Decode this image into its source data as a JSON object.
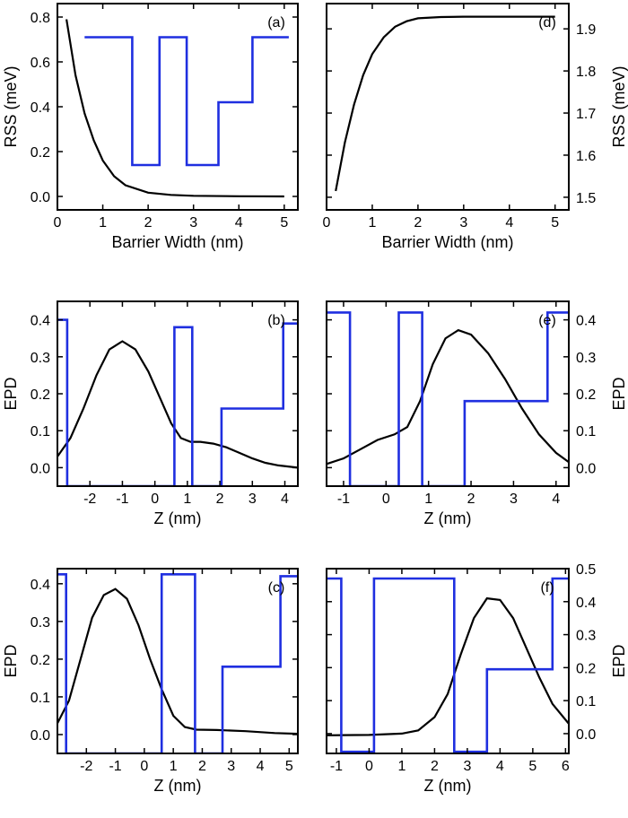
{
  "chart_data": [
    {
      "id": "a",
      "panel_label": "(a)",
      "type": "line",
      "xlabel": "Barrier Width (nm)",
      "ylabel": "RSS (meV)",
      "ylabel_side": "left",
      "xlim": [
        0,
        5.3
      ],
      "ylim": [
        -0.06,
        0.86
      ],
      "xticks": [
        0,
        1,
        2,
        3,
        4,
        5
      ],
      "yticks": [
        0.0,
        0.2,
        0.4,
        0.6,
        0.8
      ],
      "tick_decimals": 1,
      "series": [
        {
          "role": "curve",
          "color": "#000000",
          "x": [
            0.2,
            0.4,
            0.6,
            0.8,
            1.0,
            1.25,
            1.5,
            2.0,
            2.5,
            3.0,
            4.0,
            5.0
          ],
          "y": [
            0.79,
            0.54,
            0.37,
            0.25,
            0.16,
            0.09,
            0.05,
            0.017,
            0.007,
            0.003,
            0.001,
            0.0
          ]
        },
        {
          "role": "potential-inset",
          "color": "#1f2fe0",
          "x": [
            0.6,
            1.65,
            1.65,
            2.25,
            2.25,
            2.85,
            2.85,
            3.55,
            3.55,
            4.3,
            4.3,
            5.1
          ],
          "y": [
            0.71,
            0.71,
            0.14,
            0.14,
            0.71,
            0.71,
            0.14,
            0.14,
            0.42,
            0.42,
            0.71,
            0.71
          ]
        }
      ]
    },
    {
      "id": "d",
      "panel_label": "(d)",
      "type": "line",
      "xlabel": "Barrier Width (nm)",
      "ylabel": "RSS (meV)",
      "ylabel_side": "right",
      "xlim": [
        0,
        5.3
      ],
      "ylim": [
        1.47,
        1.96
      ],
      "xticks": [
        0,
        1,
        2,
        3,
        4,
        5
      ],
      "yticks": [
        1.5,
        1.6,
        1.7,
        1.8,
        1.9
      ],
      "tick_decimals": 1,
      "series": [
        {
          "role": "curve",
          "color": "#000000",
          "x": [
            0.2,
            0.4,
            0.6,
            0.8,
            1.0,
            1.25,
            1.5,
            1.75,
            2.0,
            2.5,
            3.0,
            4.0,
            5.0
          ],
          "y": [
            1.515,
            1.63,
            1.72,
            1.79,
            1.84,
            1.88,
            1.905,
            1.918,
            1.925,
            1.928,
            1.929,
            1.929,
            1.929
          ]
        }
      ]
    },
    {
      "id": "b",
      "panel_label": "(b)",
      "type": "line",
      "xlabel": "Z (nm)",
      "ylabel": "EPD",
      "ylabel_side": "left",
      "xlim": [
        -3.0,
        4.4
      ],
      "ylim": [
        -0.05,
        0.45
      ],
      "xticks": [
        -2,
        -1,
        0,
        1,
        2,
        3,
        4
      ],
      "yticks": [
        0.0,
        0.1,
        0.2,
        0.3,
        0.4
      ],
      "tick_decimals": 1,
      "series": [
        {
          "role": "curve",
          "color": "#000000",
          "x": [
            -3.0,
            -2.6,
            -2.2,
            -1.8,
            -1.4,
            -1.0,
            -0.6,
            -0.2,
            0.2,
            0.5,
            0.8,
            1.1,
            1.4,
            1.8,
            2.2,
            2.6,
            3.0,
            3.4,
            3.8,
            4.4
          ],
          "y": [
            0.03,
            0.08,
            0.16,
            0.25,
            0.32,
            0.342,
            0.32,
            0.26,
            0.18,
            0.12,
            0.08,
            0.07,
            0.07,
            0.065,
            0.055,
            0.04,
            0.025,
            0.013,
            0.006,
            0.0
          ]
        },
        {
          "role": "potential",
          "color": "#1f2fe0",
          "x": [
            -3.0,
            -2.7,
            -2.7,
            0.6,
            0.6,
            1.15,
            1.15,
            2.05,
            2.05,
            3.95,
            3.95,
            4.4
          ],
          "y": [
            0.4,
            0.4,
            -0.05,
            -0.05,
            0.38,
            0.38,
            -0.05,
            -0.05,
            0.16,
            0.16,
            0.39,
            0.39
          ]
        }
      ]
    },
    {
      "id": "e",
      "panel_label": "(e)",
      "type": "line",
      "xlabel": "Z (nm)",
      "ylabel": "EPD",
      "ylabel_side": "right",
      "xlim": [
        -1.4,
        4.3
      ],
      "ylim": [
        -0.05,
        0.45
      ],
      "xticks": [
        -1,
        0,
        1,
        2,
        3,
        4
      ],
      "yticks": [
        0.0,
        0.1,
        0.2,
        0.3,
        0.4
      ],
      "tick_decimals": 1,
      "series": [
        {
          "role": "curve",
          "color": "#000000",
          "x": [
            -1.4,
            -1.0,
            -0.6,
            -0.2,
            0.2,
            0.5,
            0.8,
            1.1,
            1.4,
            1.7,
            2.0,
            2.4,
            2.8,
            3.2,
            3.6,
            4.0,
            4.3
          ],
          "y": [
            0.01,
            0.025,
            0.05,
            0.075,
            0.09,
            0.11,
            0.18,
            0.28,
            0.35,
            0.372,
            0.36,
            0.31,
            0.24,
            0.16,
            0.09,
            0.04,
            0.015
          ]
        },
        {
          "role": "potential",
          "color": "#1f2fe0",
          "x": [
            -1.4,
            -0.85,
            -0.85,
            0.3,
            0.3,
            0.85,
            0.85,
            1.85,
            1.85,
            3.8,
            3.8,
            4.3
          ],
          "y": [
            0.42,
            0.42,
            -0.05,
            -0.05,
            0.42,
            0.42,
            -0.05,
            -0.05,
            0.18,
            0.18,
            0.42,
            0.42
          ]
        }
      ]
    },
    {
      "id": "c",
      "panel_label": "(c)",
      "type": "line",
      "xlabel": "Z (nm)",
      "ylabel": "EPD",
      "ylabel_side": "left",
      "xlim": [
        -3.0,
        5.3
      ],
      "ylim": [
        -0.05,
        0.44
      ],
      "xticks": [
        -2,
        -1,
        0,
        1,
        2,
        3,
        4,
        5
      ],
      "yticks": [
        0.0,
        0.1,
        0.2,
        0.3,
        0.4
      ],
      "tick_decimals": 1,
      "series": [
        {
          "role": "curve",
          "color": "#000000",
          "x": [
            -3.0,
            -2.6,
            -2.2,
            -1.8,
            -1.4,
            -1.0,
            -0.6,
            -0.2,
            0.2,
            0.6,
            1.0,
            1.4,
            1.8,
            2.5,
            3.5,
            4.5,
            5.3
          ],
          "y": [
            0.03,
            0.09,
            0.2,
            0.31,
            0.37,
            0.386,
            0.36,
            0.29,
            0.2,
            0.12,
            0.05,
            0.02,
            0.013,
            0.012,
            0.009,
            0.004,
            0.002
          ]
        },
        {
          "role": "potential",
          "color": "#1f2fe0",
          "x": [
            -3.0,
            -2.7,
            -2.7,
            0.6,
            0.6,
            1.75,
            1.75,
            2.7,
            2.7,
            4.7,
            4.7,
            5.3
          ],
          "y": [
            0.425,
            0.425,
            -0.05,
            -0.05,
            0.425,
            0.425,
            -0.05,
            -0.05,
            0.18,
            0.18,
            0.42,
            0.42
          ]
        }
      ]
    },
    {
      "id": "f",
      "panel_label": "(f)",
      "type": "line",
      "xlabel": "Z (nm)",
      "ylabel": "EPD",
      "ylabel_side": "right",
      "xlim": [
        -1.3,
        6.1
      ],
      "ylim": [
        -0.06,
        0.5
      ],
      "xticks": [
        -1,
        0,
        1,
        2,
        3,
        4,
        5,
        6
      ],
      "yticks": [
        0.0,
        0.1,
        0.2,
        0.3,
        0.4,
        0.5
      ],
      "tick_decimals": 1,
      "series": [
        {
          "role": "curve",
          "color": "#000000",
          "x": [
            -1.3,
            0.0,
            1.0,
            1.5,
            2.0,
            2.4,
            2.8,
            3.2,
            3.6,
            4.0,
            4.4,
            4.8,
            5.2,
            5.6,
            6.1
          ],
          "y": [
            -0.005,
            -0.004,
            0.0,
            0.01,
            0.05,
            0.12,
            0.24,
            0.35,
            0.41,
            0.405,
            0.35,
            0.26,
            0.17,
            0.09,
            0.03
          ]
        },
        {
          "role": "potential",
          "color": "#1f2fe0",
          "x": [
            -1.3,
            -0.85,
            -0.85,
            0.15,
            0.15,
            2.6,
            2.6,
            3.6,
            3.6,
            5.6,
            5.6,
            6.1
          ],
          "y": [
            0.47,
            0.47,
            -0.055,
            -0.055,
            0.47,
            0.47,
            -0.055,
            -0.055,
            0.195,
            0.195,
            0.47,
            0.47
          ]
        }
      ]
    }
  ]
}
